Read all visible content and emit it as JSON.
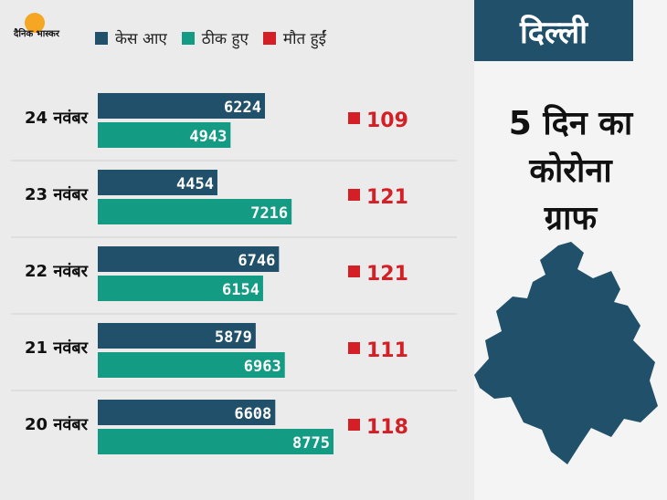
{
  "brand": {
    "logo_text": "दैनिक भास्कर"
  },
  "legend": [
    {
      "label": "केस आए",
      "color": "#20506a"
    },
    {
      "label": "ठीक हुए",
      "color": "#139b84"
    },
    {
      "label": "मौत हुईं",
      "color": "#d41f26"
    }
  ],
  "panel": {
    "region": "दिल्ली",
    "title_lines": [
      "5 दिन का",
      "कोरोना",
      "ग्राफ"
    ],
    "map_icon": "delhi-map-icon"
  },
  "colors": {
    "cases": "#20506a",
    "recovered": "#139b84",
    "deaths": "#d41f26"
  },
  "chart_data": {
    "type": "bar",
    "orientation": "horizontal",
    "categories": [
      "24 नवंबर",
      "23 नवंबर",
      "22 नवंबर",
      "21 नवंबर",
      "20 नवंबर"
    ],
    "series": [
      {
        "name": "केस आए",
        "values": [
          6224,
          4454,
          6746,
          5879,
          6608
        ]
      },
      {
        "name": "ठीक हुए",
        "values": [
          4943,
          7216,
          6154,
          6963,
          8775
        ]
      },
      {
        "name": "मौत हुईं",
        "values": [
          109,
          121,
          121,
          111,
          118
        ]
      }
    ],
    "xlim": [
      0,
      8775
    ],
    "grid": false,
    "legend_position": "top"
  }
}
